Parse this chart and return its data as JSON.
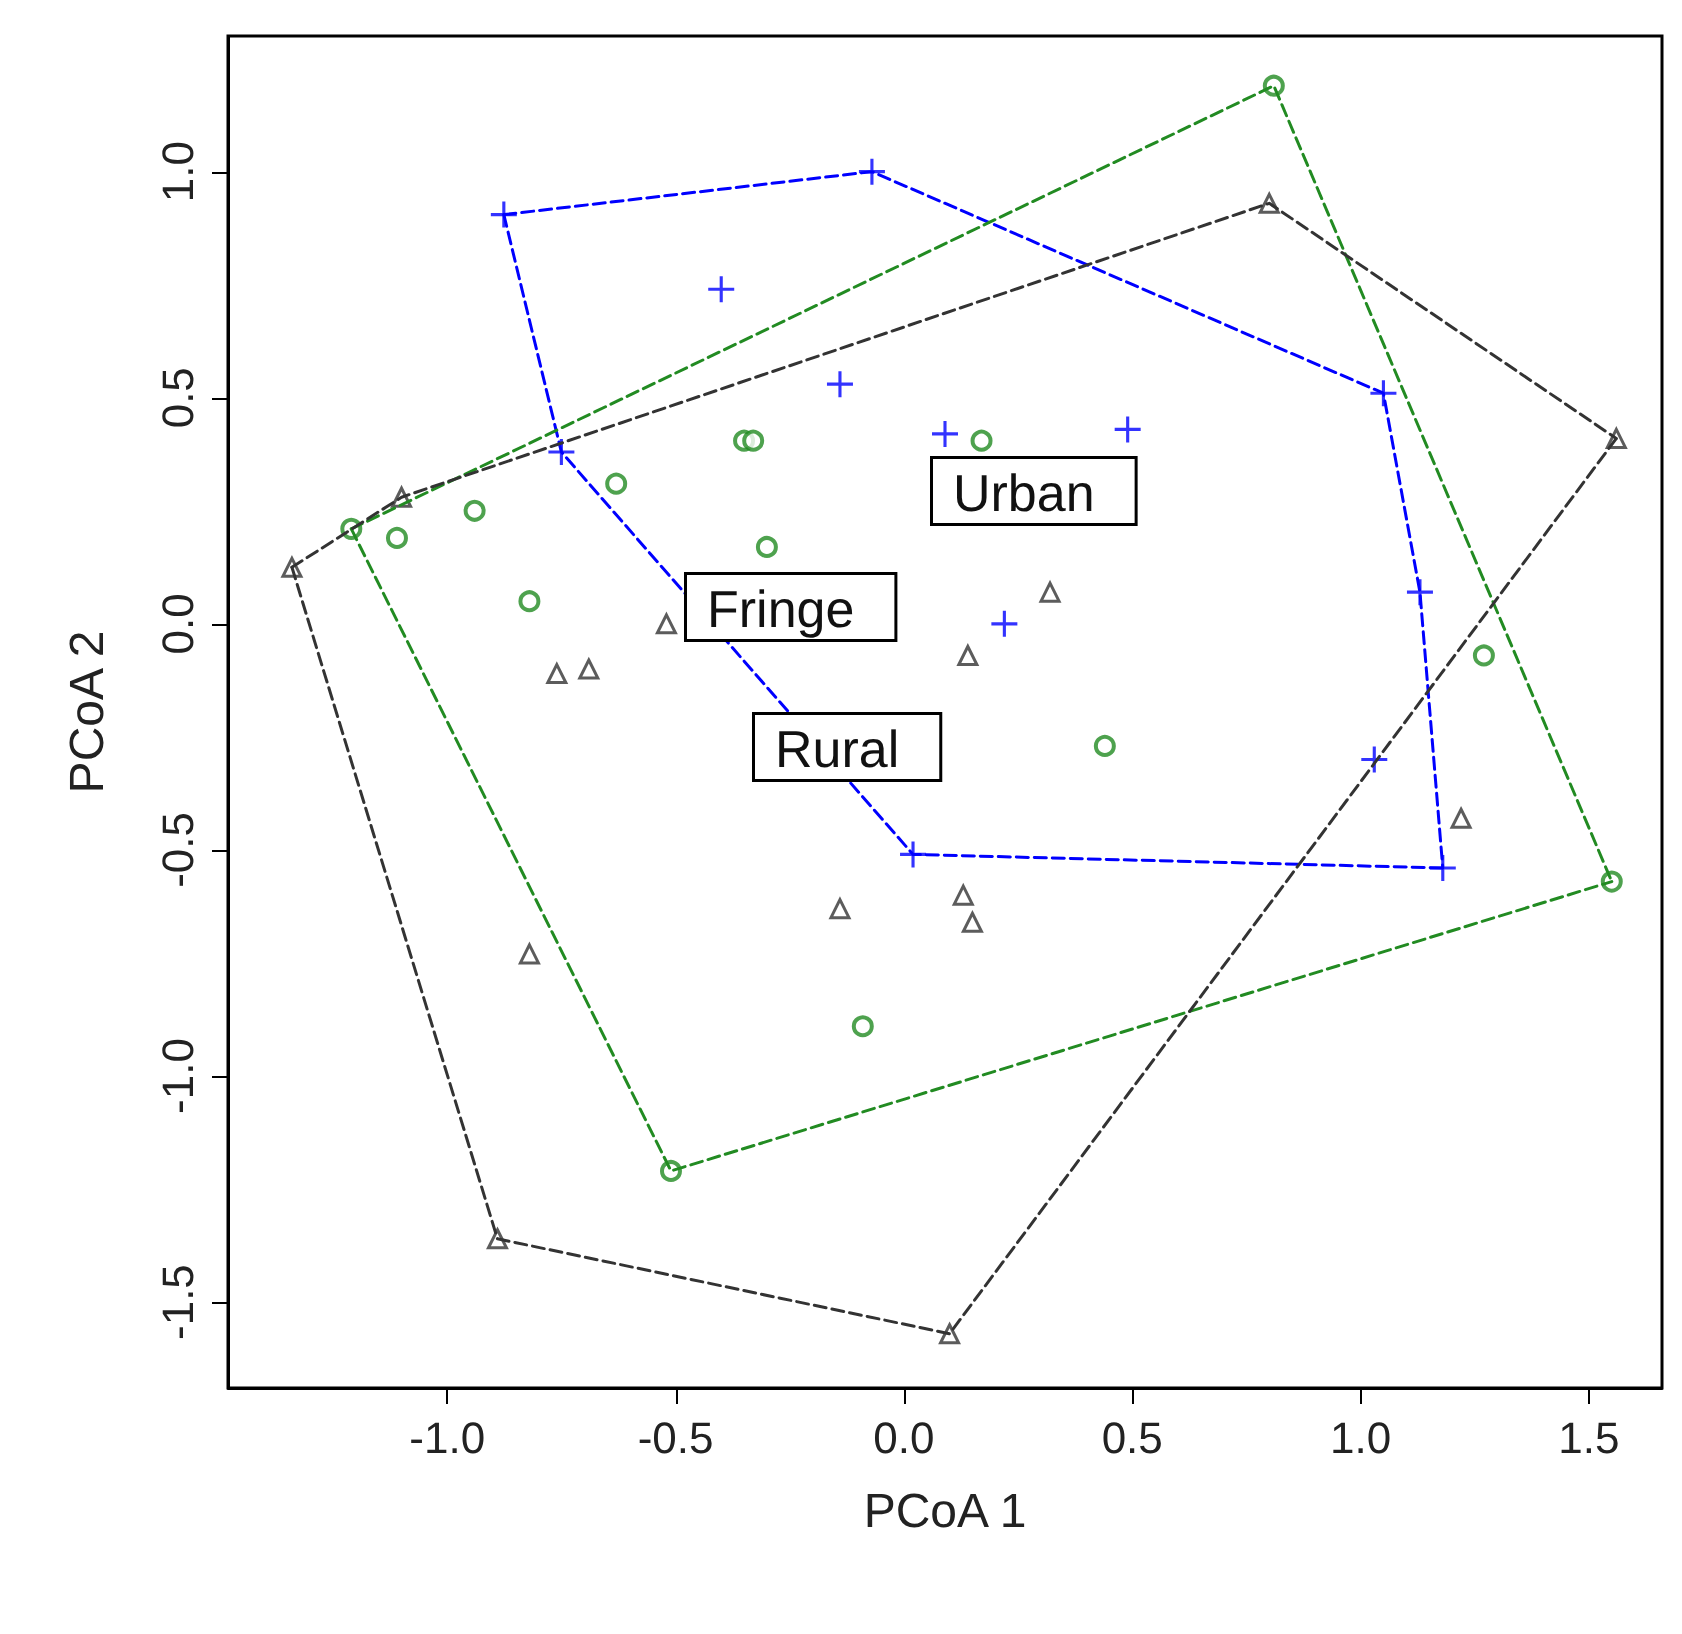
{
  "chart_data": {
    "type": "scatter",
    "xlabel": "PCoA 1",
    "ylabel": "PCoA 2",
    "xlim": [
      -1.48,
      1.66
    ],
    "ylim": [
      -1.69,
      1.3
    ],
    "xticks": [
      {
        "value": -1,
        "label": "-1.0"
      },
      {
        "value": -0.5,
        "label": "-0.5"
      },
      {
        "value": 0,
        "label": "0.0"
      },
      {
        "value": 0.5,
        "label": "0.5"
      },
      {
        "value": 1,
        "label": "1.0"
      },
      {
        "value": 1.5,
        "label": "1.5"
      }
    ],
    "yticks": [
      {
        "value": -1.5,
        "label": "-1.5"
      },
      {
        "value": -1,
        "label": "-1.0"
      },
      {
        "value": -0.5,
        "label": "-0.5"
      },
      {
        "value": 0,
        "label": "0.0"
      },
      {
        "value": 0.5,
        "label": "0.5"
      },
      {
        "value": 1,
        "label": "1.0"
      }
    ],
    "grid": false,
    "series": [
      {
        "type": "scatter",
        "marker": "cross",
        "color": "#0000ff",
        "x": [
          -0.876,
          -0.07,
          -0.4,
          -0.14,
          -0.75,
          0.09,
          0.49,
          1.05,
          1.13,
          0.22,
          1.03,
          1.18,
          0.02
        ],
        "values": [
          0.905,
          1.0,
          0.74,
          0.53,
          0.38,
          0.42,
          0.43,
          0.51,
          0.07,
          0.0,
          -0.3,
          -0.54,
          -0.51
        ]
      },
      {
        "type": "scatter",
        "marker": "circle",
        "color": "#228b22",
        "x": [
          0.81,
          -1.21,
          -1.11,
          -0.94,
          -0.63,
          -0.35,
          -0.33,
          0.17,
          -0.3,
          -0.82,
          1.27,
          0.44,
          1.55,
          -0.09,
          -0.51
        ],
        "values": [
          1.19,
          0.21,
          0.19,
          0.25,
          0.31,
          0.405,
          0.405,
          0.405,
          0.17,
          0.05,
          -0.07,
          -0.27,
          -0.57,
          -0.89,
          -1.21
        ]
      },
      {
        "type": "scatter",
        "marker": "triangle",
        "color": "#333333",
        "x": [
          -1.34,
          -1.1,
          0.8,
          1.56,
          1.22,
          0.1,
          -0.89,
          -0.52,
          -0.76,
          -0.69,
          -0.82,
          -0.14,
          0.13,
          0.15,
          0.14,
          0.32
        ],
        "values": [
          0.125,
          0.28,
          0.93,
          0.41,
          -0.43,
          -1.57,
          -1.36,
          0.0,
          -0.11,
          -0.1,
          -0.73,
          -0.63,
          -0.6,
          -0.66,
          -0.07,
          0.07
        ]
      },
      {
        "type": "line",
        "marker": "none",
        "line_style": "dashed",
        "color": "#0000ff",
        "x": [
          -0.876,
          -0.07,
          1.05,
          1.13,
          1.18
        ],
        "values": [
          0.905,
          1.0,
          0.51,
          0.07,
          -0.54
        ]
      },
      {
        "type": "line",
        "marker": "none",
        "line_style": "dashed",
        "color": "#0000ff",
        "x": [
          -0.876,
          -0.75,
          0.02,
          1.18
        ],
        "values": [
          0.905,
          0.38,
          -0.51,
          -0.54
        ]
      },
      {
        "type": "line",
        "marker": "none",
        "line_style": "dashed",
        "color": "#228b22",
        "x": [
          -1.21,
          0.81,
          1.55
        ],
        "values": [
          0.21,
          1.19,
          -0.57
        ]
      },
      {
        "type": "line",
        "marker": "none",
        "line_style": "dashed",
        "color": "#228b22",
        "x": [
          -1.21,
          -0.51,
          1.55
        ],
        "values": [
          0.21,
          -1.21,
          -0.57
        ]
      },
      {
        "type": "line",
        "marker": "none",
        "line_style": "dashed",
        "color": "#333333",
        "x": [
          -1.34,
          -1.1,
          0.8,
          1.56
        ],
        "values": [
          0.125,
          0.28,
          0.93,
          0.41
        ]
      },
      {
        "type": "line",
        "marker": "none",
        "line_style": "dashed",
        "color": "#333333",
        "x": [
          -1.34,
          -0.89,
          0.1,
          1.56
        ],
        "values": [
          0.125,
          -1.36,
          -1.57,
          0.41
        ]
      }
    ],
    "annotations": [
      "Urban",
      "Fringe",
      "Rural"
    ]
  }
}
